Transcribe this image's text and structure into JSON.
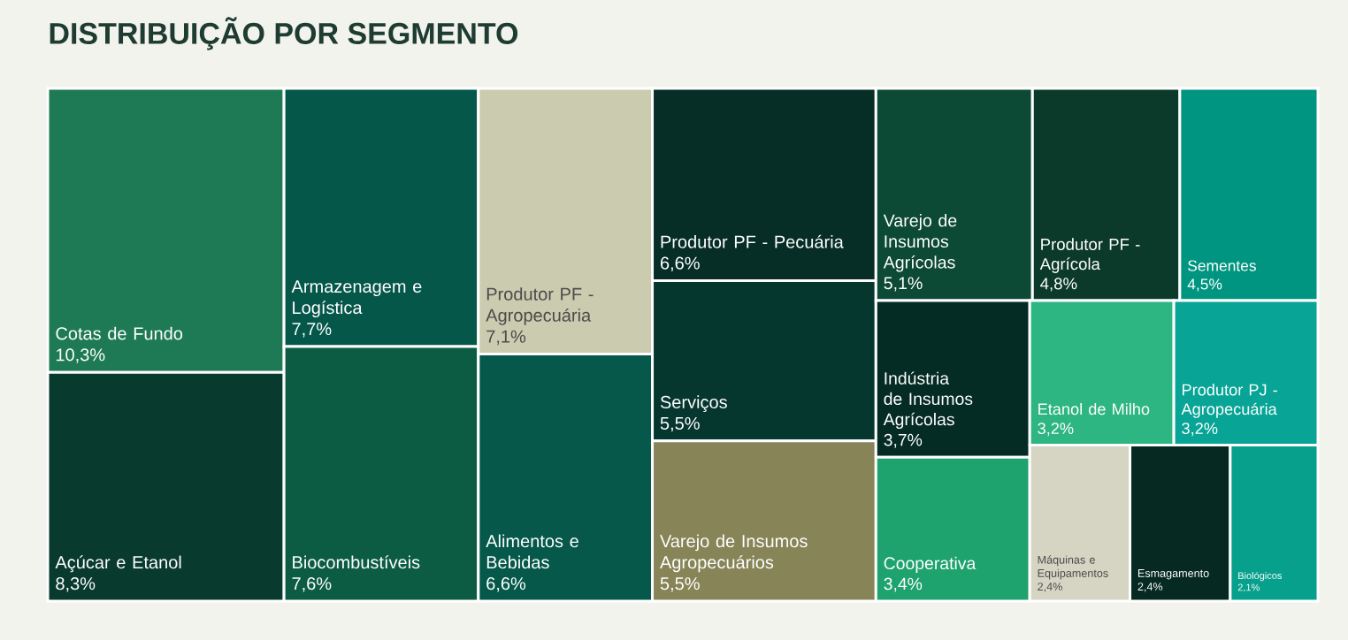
{
  "chart_data": {
    "type": "other",
    "title": "DISTRIBUIÇÃO POR SEGMENTO",
    "categories": [
      "Cotas de Fundo",
      "Açúcar e Etanol",
      "Armazenagem e Logística",
      "Biocombustíveis",
      "Produtor PF - Agropecuária",
      "Alimentos e Bebidas",
      "Produtor PF - Pecuária",
      "Serviços",
      "Varejo de Insumos Agropecuários",
      "Varejo de Insumos Agrícolas",
      "Produtor PF - Agrícola",
      "Sementes",
      "Indústria de Insumos Agrícolas",
      "Cooperativa",
      "Etanol de Milho",
      "Produtor PJ - Agropecuária",
      "Máquinas e Equipamentos",
      "Esmagamento",
      "Biológicos"
    ],
    "values": [
      10.3,
      8.3,
      7.7,
      7.6,
      7.1,
      6.6,
      6.6,
      5.5,
      5.5,
      5.1,
      4.8,
      4.5,
      3.7,
      3.4,
      3.2,
      3.2,
      2.4,
      2.4,
      2.1
    ],
    "value_labels": [
      "10,3%",
      "8,3%",
      "7,7%",
      "7,6%",
      "7,1%",
      "6,6%",
      "6,6%",
      "5,5%",
      "5,5%",
      "5,1%",
      "4,8%",
      "4,5%",
      "3,7%",
      "3,4%",
      "3,2%",
      "3,2%",
      "2,4%",
      "2,4%",
      "2,1%"
    ],
    "colors": [
      "#1e7a55",
      "#083a2e",
      "#05574a",
      "#0c5c43",
      "#cbcbb0",
      "#05584a",
      "#062e26",
      "#06372e",
      "#878557",
      "#0d4a35",
      "#0c3a2a",
      "#009580",
      "#052c24",
      "#1fa36e",
      "#2db582",
      "#08a596",
      "#d6d4c3",
      "#062a22",
      "#07a08d"
    ]
  }
}
